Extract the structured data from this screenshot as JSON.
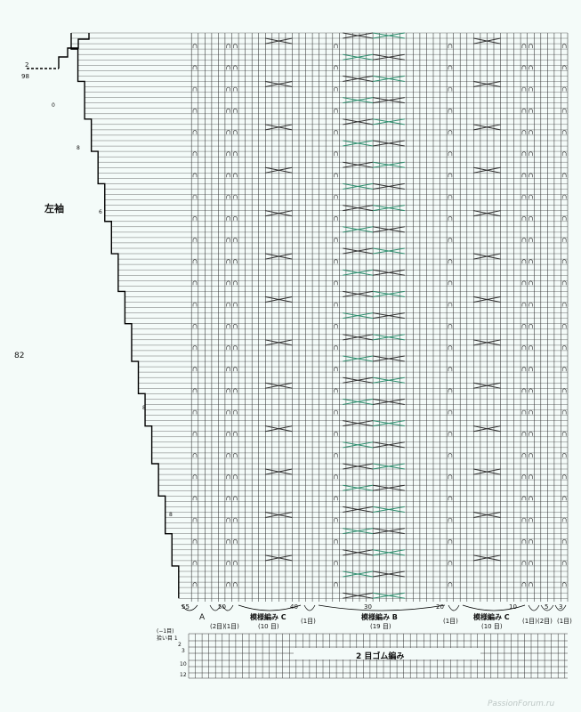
{
  "colors": {
    "background": "#f4fbf9",
    "grid_line": "#333333",
    "cable_green": "#2f8f6f",
    "cable_dark": "#333333"
  },
  "diagram": {
    "title": "左袖",
    "side_label": "82",
    "top_row_labels": [
      "2",
      "98"
    ],
    "decrease_marks": [
      "0",
      "6",
      "8"
    ],
    "col_ticks": [
      "55",
      "50",
      "40",
      "30",
      "20",
      "10",
      "5",
      "3"
    ],
    "sections": [
      {
        "name": "A",
        "stitches": ""
      },
      {
        "name": "",
        "stitches": "(2目)"
      },
      {
        "name": "",
        "stitches": "(1目)"
      },
      {
        "name": "模様編み C",
        "stitches": "(10 目)"
      },
      {
        "name": "",
        "stitches": "(1目)"
      },
      {
        "name": "模様編み B",
        "stitches": "(19 目)"
      },
      {
        "name": "",
        "stitches": "(1目)"
      },
      {
        "name": "模様編み C",
        "stitches": "(10 目)"
      },
      {
        "name": "",
        "stitches": "(1目)"
      },
      {
        "name": "",
        "stitches": "(2目)"
      },
      {
        "name": "",
        "stitches": "(1目)"
      }
    ],
    "ribbing": {
      "label": "2 目ゴム編み",
      "row_notes": [
        "(−1目)",
        "拾い目 1",
        "2",
        "3",
        "10",
        "12"
      ]
    }
  },
  "watermark": "PassionForum.ru"
}
